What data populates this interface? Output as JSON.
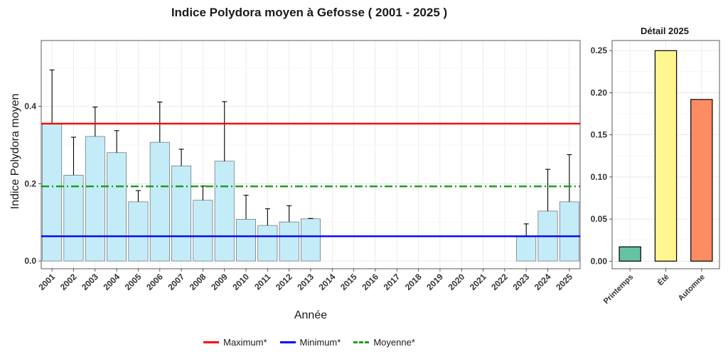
{
  "main": {
    "title": "Indice Polydora moyen à Gefosse ( 2001 - 2025 )",
    "ylabel": "Indice Polydora moyen",
    "xlabel": "Année"
  },
  "detail": {
    "title": "Détail 2025"
  },
  "legend": [
    {
      "label": "Maximum*",
      "color": "#ff0000",
      "style": "solid"
    },
    {
      "label": "Minimum*",
      "color": "#0000ff",
      "style": "solid"
    },
    {
      "label": "Moyenne*",
      "color": "#1e9e1e",
      "style": "dashdot"
    }
  ],
  "chart_data": [
    {
      "type": "bar",
      "title": "Indice Polydora moyen à Gefosse ( 2001 - 2025 )",
      "xlabel": "Année",
      "ylabel": "Indice Polydora moyen",
      "categories": [
        "2001",
        "2002",
        "2003",
        "2004",
        "2005",
        "2006",
        "2007",
        "2008",
        "2009",
        "2010",
        "2011",
        "2012",
        "2013",
        "2014",
        "2015",
        "2016",
        "2017",
        "2018",
        "2019",
        "2020",
        "2021",
        "2022",
        "2023",
        "2024",
        "2025"
      ],
      "values": [
        0.355,
        0.222,
        0.322,
        0.28,
        0.153,
        0.307,
        0.246,
        0.157,
        0.258,
        0.108,
        0.092,
        0.101,
        0.109,
        null,
        null,
        null,
        null,
        null,
        null,
        null,
        null,
        null,
        0.064,
        0.129,
        0.153
      ],
      "error_upper": [
        0.494,
        0.32,
        0.398,
        0.337,
        0.182,
        0.411,
        0.289,
        0.194,
        0.412,
        0.17,
        0.135,
        0.143,
        0.11,
        null,
        null,
        null,
        null,
        null,
        null,
        null,
        null,
        null,
        0.096,
        0.237,
        0.275
      ],
      "bar_color": "#c3ecf8",
      "reference_lines": [
        {
          "label": "Maximum*",
          "y": 0.355,
          "color": "#ff0000"
        },
        {
          "label": "Minimum*",
          "y": 0.064,
          "color": "#0000ff"
        },
        {
          "label": "Moyenne*",
          "y": 0.193,
          "color": "#1e9e1e"
        }
      ],
      "yticks": [
        "0.0",
        "0.2",
        "0.4"
      ],
      "ylim": [
        -0.02,
        0.57
      ],
      "grid": true,
      "legend_position": "bottom"
    },
    {
      "type": "bar",
      "title": "Détail 2025",
      "categories": [
        "Printemps",
        "Été",
        "Automne"
      ],
      "values": [
        0.017,
        0.25,
        0.192
      ],
      "colors": [
        "#66c2a5",
        "#fff68f",
        "#fc8d62"
      ],
      "yticks": [
        "0.00",
        "0.05",
        "0.10",
        "0.15",
        "0.20",
        "0.25"
      ],
      "ylim": [
        -0.009,
        0.262
      ],
      "grid": true
    }
  ]
}
